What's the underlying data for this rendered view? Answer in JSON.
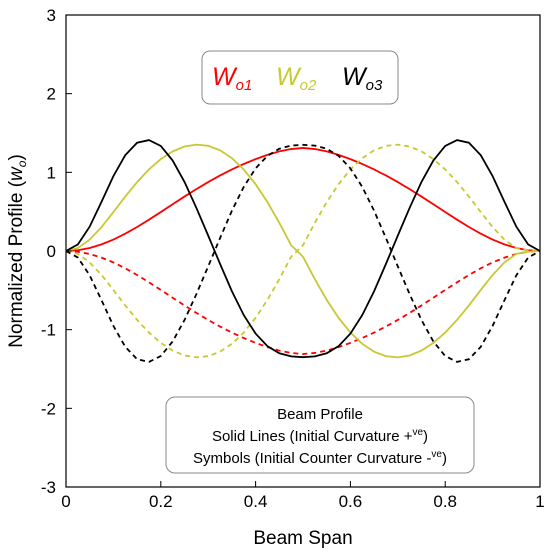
{
  "chart_data": {
    "type": "line",
    "xlabel": "Beam Span",
    "ylabel_main": "Normalized Profile (",
    "ylabel_var": "w",
    "ylabel_sub": "o",
    "ylabel_close": ")",
    "xlim": [
      0,
      1
    ],
    "ylim": [
      -3,
      3
    ],
    "x_ticks": [
      0,
      0.2,
      0.4,
      0.6,
      0.8,
      1
    ],
    "x_tick_labels": [
      "0",
      "0.2",
      "0.4",
      "0.6",
      "0.8",
      "1"
    ],
    "y_ticks": [
      -3,
      -2,
      -1,
      0,
      1,
      2,
      3
    ],
    "y_tick_labels": [
      "-3",
      "-2",
      "-1",
      "0",
      "1",
      "2",
      "3"
    ],
    "grid": false,
    "legend": {
      "placement": "top-center",
      "entries": [
        {
          "main": "W",
          "sub": "o1",
          "color": "#ff0000"
        },
        {
          "main": "W",
          "sub": "o2",
          "color": "#c8c832"
        },
        {
          "main": "W",
          "sub": "o3",
          "color": "#000000"
        }
      ]
    },
    "note": {
      "placement": "bottom-center",
      "line1": "Beam Profile",
      "line2_main": "Solid Lines (Initial Curvature +",
      "line2_sup": "ve",
      "line2_close": ")",
      "line3_main": "Symbols (Initial Counter Curvature -",
      "line3_sup": "ve",
      "line3_close": ")"
    },
    "x": [
      0,
      0.025,
      0.05,
      0.075,
      0.1,
      0.125,
      0.15,
      0.175,
      0.2,
      0.225,
      0.25,
      0.275,
      0.3,
      0.325,
      0.35,
      0.375,
      0.4,
      0.425,
      0.45,
      0.475,
      0.5,
      0.525,
      0.55,
      0.575,
      0.6,
      0.625,
      0.65,
      0.675,
      0.7,
      0.725,
      0.75,
      0.775,
      0.8,
      0.825,
      0.85,
      0.875,
      0.9,
      0.925,
      0.95,
      0.975,
      1
    ],
    "series": [
      {
        "name": "Wo1 +ve",
        "color": "#ff0000",
        "dash": "solid",
        "values": [
          0,
          0.009,
          0.038,
          0.084,
          0.145,
          0.22,
          0.305,
          0.398,
          0.495,
          0.594,
          0.692,
          0.787,
          0.876,
          0.96,
          1.037,
          1.106,
          1.168,
          1.222,
          1.266,
          1.296,
          1.31,
          1.296,
          1.266,
          1.222,
          1.168,
          1.106,
          1.037,
          0.96,
          0.876,
          0.787,
          0.692,
          0.594,
          0.495,
          0.398,
          0.305,
          0.22,
          0.145,
          0.084,
          0.038,
          0.009,
          0
        ]
      },
      {
        "name": "Wo1 -ve",
        "color": "#ff0000",
        "dash": "dashed",
        "values": [
          0,
          -0.009,
          -0.038,
          -0.084,
          -0.145,
          -0.22,
          -0.305,
          -0.398,
          -0.495,
          -0.594,
          -0.692,
          -0.787,
          -0.876,
          -0.96,
          -1.037,
          -1.106,
          -1.168,
          -1.222,
          -1.266,
          -1.296,
          -1.31,
          -1.296,
          -1.266,
          -1.222,
          -1.168,
          -1.106,
          -1.037,
          -0.96,
          -0.876,
          -0.787,
          -0.692,
          -0.594,
          -0.495,
          -0.398,
          -0.305,
          -0.22,
          -0.145,
          -0.084,
          -0.038,
          -0.009,
          0
        ]
      },
      {
        "name": "Wo2 +ve",
        "color": "#c8c832",
        "dash": "solid",
        "values": [
          0,
          0.037,
          0.145,
          0.305,
          0.495,
          0.692,
          0.876,
          1.037,
          1.168,
          1.266,
          1.328,
          1.352,
          1.337,
          1.28,
          1.18,
          1.036,
          0.849,
          0.621,
          0.358,
          0.073,
          -0.073,
          -0.358,
          -0.621,
          -0.849,
          -1.036,
          -1.18,
          -1.28,
          -1.337,
          -1.352,
          -1.328,
          -1.266,
          -1.168,
          -1.037,
          -0.876,
          -0.692,
          -0.495,
          -0.305,
          -0.145,
          -0.037,
          -0.009,
          0
        ]
      },
      {
        "name": "Wo2 -ve",
        "color": "#c8c832",
        "dash": "dashed",
        "values": [
          0,
          -0.037,
          -0.145,
          -0.305,
          -0.495,
          -0.692,
          -0.876,
          -1.037,
          -1.168,
          -1.266,
          -1.328,
          -1.352,
          -1.337,
          -1.28,
          -1.18,
          -1.036,
          -0.849,
          -0.621,
          -0.358,
          -0.073,
          0.073,
          0.358,
          0.621,
          0.849,
          1.036,
          1.18,
          1.28,
          1.337,
          1.352,
          1.328,
          1.266,
          1.168,
          1.037,
          0.876,
          0.692,
          0.495,
          0.305,
          0.145,
          0.037,
          0.009,
          0
        ]
      },
      {
        "name": "Wo3 +ve",
        "color": "#000000",
        "dash": "solid",
        "values": [
          0,
          0.083,
          0.31,
          0.626,
          0.952,
          1.218,
          1.376,
          1.41,
          1.335,
          1.15,
          0.878,
          0.549,
          0.195,
          -0.164,
          -0.512,
          -0.815,
          -1.05,
          -1.21,
          -1.3,
          -1.34,
          -1.35,
          -1.34,
          -1.3,
          -1.21,
          -1.05,
          -0.815,
          -0.512,
          -0.164,
          0.195,
          0.549,
          0.878,
          1.15,
          1.335,
          1.41,
          1.376,
          1.218,
          0.952,
          0.626,
          0.31,
          0.083,
          0
        ]
      },
      {
        "name": "Wo3 -ve",
        "color": "#000000",
        "dash": "dashed",
        "values": [
          0,
          -0.083,
          -0.31,
          -0.626,
          -0.952,
          -1.218,
          -1.376,
          -1.41,
          -1.335,
          -1.15,
          -0.878,
          -0.549,
          -0.195,
          0.164,
          0.512,
          0.815,
          1.05,
          1.21,
          1.3,
          1.34,
          1.35,
          1.34,
          1.3,
          1.21,
          1.05,
          0.815,
          0.512,
          0.164,
          -0.195,
          -0.549,
          -0.878,
          -1.15,
          -1.335,
          -1.41,
          -1.376,
          -1.218,
          -0.952,
          -0.626,
          -0.31,
          -0.083,
          0
        ]
      }
    ]
  }
}
